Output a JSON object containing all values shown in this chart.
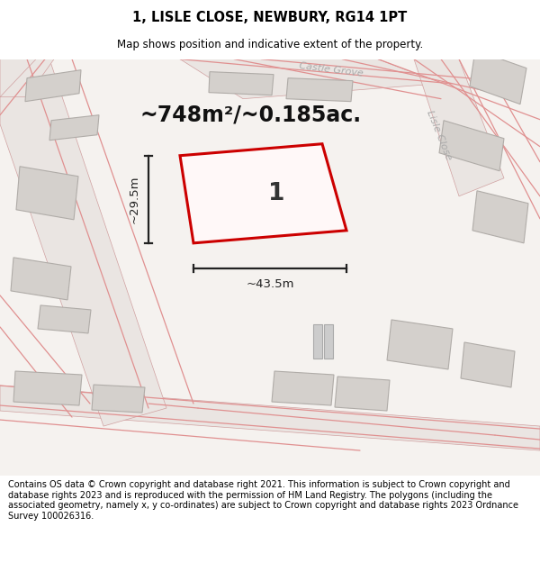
{
  "title": "1, LISLE CLOSE, NEWBURY, RG14 1PT",
  "subtitle": "Map shows position and indicative extent of the property.",
  "footer": "Contains OS data © Crown copyright and database right 2021. This information is subject to Crown copyright and database rights 2023 and is reproduced with the permission of HM Land Registry. The polygons (including the associated geometry, namely x, y co-ordinates) are subject to Crown copyright and database rights 2023 Ordnance Survey 100026316.",
  "area_text": "~748m²/~0.185ac.",
  "width_text": "~43.5m",
  "height_text": "~29.5m",
  "plot_number": "1",
  "map_bg": "#f7f5f3",
  "building_color": "#d4d0cc",
  "building_edge": "#b8b4b0",
  "plot_fill": "#fff8f8",
  "plot_edge": "#cc0000",
  "plot_edge_width": 2.2,
  "road_fill": "#ede8e4",
  "road_line": "#e8a0a0",
  "dim_color": "#222222",
  "street_color": "#aaaaaa",
  "title_fontsize": 10.5,
  "subtitle_fontsize": 8.5,
  "footer_fontsize": 7.0,
  "area_fontsize": 17,
  "dim_fontsize": 9.5,
  "plot_label_fontsize": 19,
  "street_fontsize": 8
}
